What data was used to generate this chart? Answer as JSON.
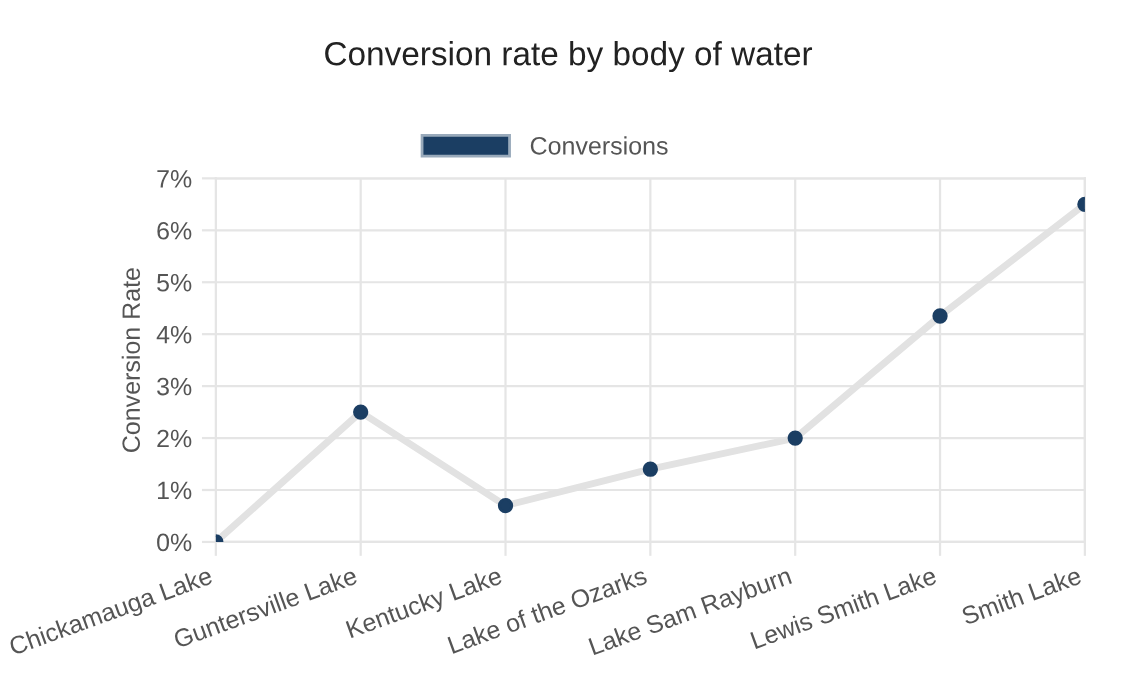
{
  "chart_data": {
    "type": "line",
    "title": "Conversion rate by body of water",
    "ylabel": "Conversion Rate",
    "categories": [
      "Chickamauga Lake",
      "Guntersville Lake",
      "Kentucky Lake",
      "Lake of the Ozarks",
      "Lake Sam Rayburn",
      "Lewis Smith Lake",
      "Smith Lake"
    ],
    "series": [
      {
        "name": "Conversions",
        "color": "#1b3e63",
        "values": [
          0,
          2.5,
          0.7,
          1.4,
          2.0,
          4.35,
          6.5
        ]
      }
    ],
    "ylim": [
      0,
      7
    ],
    "yticks": [
      {
        "value": 0,
        "label": "0%"
      },
      {
        "value": 1,
        "label": "1%"
      },
      {
        "value": 2,
        "label": "2%"
      },
      {
        "value": 3,
        "label": "3%"
      },
      {
        "value": 4,
        "label": "4%"
      },
      {
        "value": 5,
        "label": "5%"
      },
      {
        "value": 6,
        "label": "6%"
      },
      {
        "value": 7,
        "label": "7%"
      }
    ],
    "grid": true,
    "legend": "top",
    "marker": "circle",
    "line_style": "solid"
  }
}
